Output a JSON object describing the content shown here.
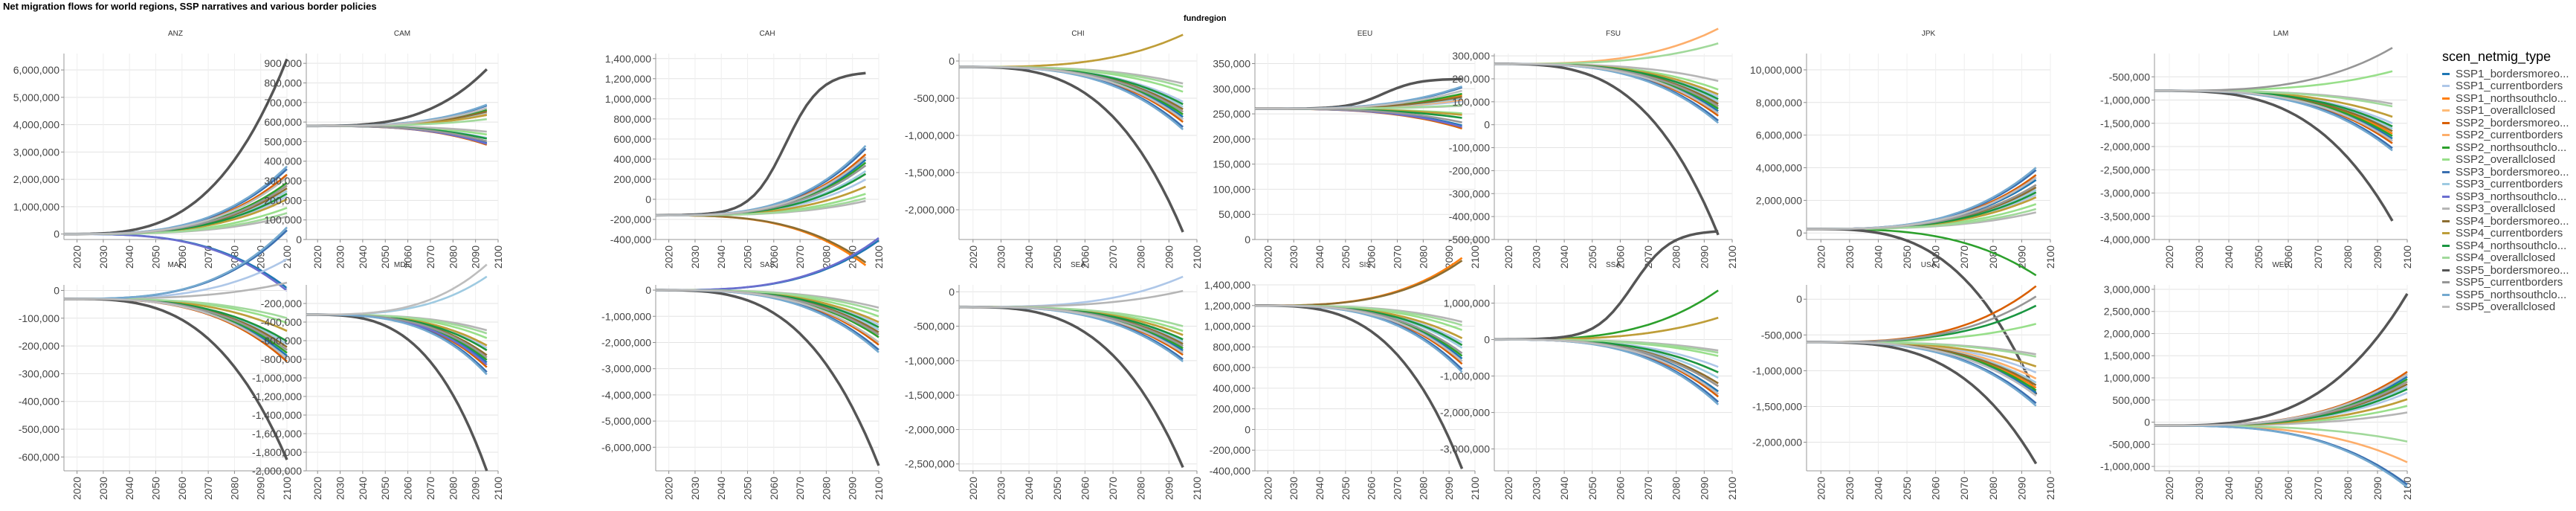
{
  "chart_title": "Net migration flows for world regions, SSP narratives and various border policies",
  "facet_header": "fundregion",
  "legend_title": "scen_netmig_type",
  "chart_data": {
    "type": "line",
    "x": [
      2010,
      2020,
      2030,
      2040,
      2050,
      2060,
      2070,
      2080,
      2090,
      2100
    ],
    "x_tick_labels": [
      "2020",
      "2030",
      "2040",
      "2050",
      "2060",
      "2070",
      "2080",
      "2090",
      "2100"
    ],
    "xlim": [
      2015,
      2100
    ],
    "grid": true,
    "legend_position": "right",
    "scenarios": [
      {
        "name": "SSP1_bordersmoreo...",
        "color": "#1f77b4",
        "weight": 0.55
      },
      {
        "name": "SSP1_currentborders",
        "color": "#aec7e8",
        "weight": 0.25
      },
      {
        "name": "SSP1_northsouthclo...",
        "color": "#ff7f0e",
        "weight": 0.45
      },
      {
        "name": "SSP1_overallclosed",
        "color": "#ffbb78",
        "weight": 0.2
      },
      {
        "name": "SSP2_bordersmoreo...",
        "color": "#d95f02",
        "weight": 0.65
      },
      {
        "name": "SSP2_currentborders",
        "color": "#fdae6b",
        "weight": 0.3
      },
      {
        "name": "SSP2_northsouthclo...",
        "color": "#2ca02c",
        "weight": 0.5
      },
      {
        "name": "SSP2_overallclosed",
        "color": "#98df8a",
        "weight": 0.15
      },
      {
        "name": "SSP3_bordersmoreo...",
        "color": "#3a6fb0",
        "weight": 0.75
      },
      {
        "name": "SSP3_currentborders",
        "color": "#9ecae1",
        "weight": 0.35
      },
      {
        "name": "SSP3_northsouthclo...",
        "color": "#6b6ecf",
        "weight": 0.6
      },
      {
        "name": "SSP3_overallclosed",
        "color": "#b5b5b5",
        "weight": 0.1
      },
      {
        "name": "SSP4_bordersmoreo...",
        "color": "#8c6d31",
        "weight": 0.4
      },
      {
        "name": "SSP4_currentborders",
        "color": "#bd9e39",
        "weight": 0.2
      },
      {
        "name": "SSP4_northsouthclo...",
        "color": "#1a9641",
        "weight": 0.3
      },
      {
        "name": "SSP4_overallclosed",
        "color": "#a1d99b",
        "weight": 0.12
      },
      {
        "name": "SSP5_bordersmoreo...",
        "color": "#555555",
        "weight": 1.0
      },
      {
        "name": "SSP5_currentborders",
        "color": "#969696",
        "weight": 0.45
      },
      {
        "name": "SSP5_northsouthclo...",
        "color": "#74a9cf",
        "weight": 0.8
      },
      {
        "name": "SSP5_overallclosed",
        "color": "#bdbdbd",
        "weight": 0.6
      }
    ],
    "panels": [
      {
        "region": "ANZ",
        "ylim": [
          -200000,
          6600000
        ],
        "yticks": [
          0,
          1000000,
          2000000,
          3000000,
          4000000,
          5000000,
          6000000
        ],
        "y_tick_labels": [
          "0",
          "1,000,000",
          "2,000,000",
          "3,000,000",
          "4,000,000",
          "5,000,000",
          "6,000,000"
        ],
        "base": 0,
        "extreme": 6400000,
        "spread": 2500000,
        "down_frac": 0.02,
        "x_end": 2100
      },
      {
        "region": "CAM",
        "ylim": [
          0,
          950000
        ],
        "yticks": [
          0,
          100000,
          200000,
          300000,
          400000,
          500000,
          600000,
          700000,
          800000,
          900000
        ],
        "y_tick_labels": [
          "0",
          "100,000",
          "200,000",
          "300,000",
          "400,000",
          "500,000",
          "600,000",
          "700,000",
          "800,000",
          "900,000"
        ],
        "base": 580000,
        "extreme": 870000,
        "spread": 110000,
        "down_frac": 0.35,
        "x_end": 2095
      },
      {
        "region": "CAH",
        "ylim": [
          -400000,
          1450000
        ],
        "yticks": [
          -400000,
          -200000,
          0,
          200000,
          400000,
          600000,
          800000,
          1000000,
          1200000,
          1400000
        ],
        "y_tick_labels": [
          "-400,000",
          "-200,000",
          "0",
          "200,000",
          "400,000",
          "600,000",
          "800,000",
          "1,000,000",
          "1,200,000",
          "1,400,000"
        ],
        "base": -160000,
        "extreme": 1270000,
        "spread": 700000,
        "down_frac": 0.05,
        "x_end": 2095,
        "plateau": true
      },
      {
        "region": "CHI",
        "ylim": [
          -2400000,
          100000
        ],
        "yticks": [
          0,
          -500000,
          -1000000,
          -1500000,
          -2000000
        ],
        "y_tick_labels": [
          "0",
          "-500,000",
          "-1,000,000",
          "-1,500,000",
          "-2,000,000"
        ],
        "base": -80000,
        "extreme": -2300000,
        "spread": -850000,
        "down_frac": 0.1,
        "x_end": 2095
      },
      {
        "region": "EEU",
        "ylim": [
          0,
          370000
        ],
        "yticks": [
          0,
          50000,
          100000,
          150000,
          200000,
          250000,
          300000,
          350000
        ],
        "y_tick_labels": [
          "0",
          "50,000",
          "100,000",
          "150,000",
          "200,000",
          "250,000",
          "300,000",
          "350,000"
        ],
        "base": 260000,
        "extreme": 320000,
        "spread": 45000,
        "down_frac": 0.35,
        "x_end": 2095,
        "plateau": true
      },
      {
        "region": "FSU",
        "ylim": [
          -500000,
          310000
        ],
        "yticks": [
          -500000,
          -400000,
          -300000,
          -200000,
          -100000,
          0,
          100000,
          200000,
          300000
        ],
        "y_tick_labels": [
          "-500,000",
          "-400,000",
          "-300,000",
          "-200,000",
          "-100,000",
          "0",
          "100,000",
          "200,000",
          "300,000"
        ],
        "base": 265000,
        "extreme": -480000,
        "spread": -260000,
        "down_frac": 0.08,
        "x_end": 2095
      },
      {
        "region": "JPK",
        "ylim": [
          -400000,
          11000000
        ],
        "yticks": [
          0,
          2000000,
          4000000,
          6000000,
          8000000,
          10000000
        ],
        "y_tick_labels": [
          "0",
          "2,000,000",
          "4,000,000",
          "6,000,000",
          "8,000,000",
          "10,000,000"
        ],
        "base": 250000,
        "extreme": 10400000,
        "spread": 3800000,
        "down_frac": 0.02,
        "x_end": 2095
      },
      {
        "region": "LAM",
        "ylim": [
          -4000000,
          0
        ],
        "yticks": [
          -500000,
          -1000000,
          -1500000,
          -2000000,
          -2500000,
          -3000000,
          -3500000,
          -4000000
        ],
        "y_tick_labels": [
          "-500,000",
          "-1,000,000",
          "-1,500,000",
          "-2,000,000",
          "-2,500,000",
          "-3,000,000",
          "-3,500,000",
          "-4,000,000"
        ],
        "base": -800000,
        "extreme": -3600000,
        "spread": -1300000,
        "down_frac": 0.1,
        "x_end": 2095
      },
      {
        "region": "MAF",
        "ylim": [
          -650000,
          20000
        ],
        "yticks": [
          0,
          -100000,
          -200000,
          -300000,
          -400000,
          -500000,
          -600000
        ],
        "y_tick_labels": [
          "0",
          "-100,000",
          "-200,000",
          "-300,000",
          "-400,000",
          "-500,000",
          "-600,000"
        ],
        "base": -30000,
        "extreme": -610000,
        "spread": -260000,
        "down_frac": 0.15,
        "x_end": 2100
      },
      {
        "region": "MDE",
        "ylim": [
          -2000000,
          0
        ],
        "yticks": [
          -200000,
          -400000,
          -600000,
          -800000,
          -1000000,
          -1200000,
          -1400000,
          -1600000,
          -1800000,
          -2000000
        ],
        "y_tick_labels": [
          "-200,000",
          "-400,000",
          "-600,000",
          "-800,000",
          "-1,000,000",
          "-1,200,000",
          "-1,400,000",
          "-1,600,000",
          "-1,800,000",
          "-2,000,000"
        ],
        "base": -320000,
        "extreme": -2000000,
        "spread": -650000,
        "down_frac": 0.1,
        "x_end": 2095
      },
      {
        "region": "SAS",
        "ylim": [
          -6900000,
          200000
        ],
        "yticks": [
          0,
          -1000000,
          -2000000,
          -3000000,
          -4000000,
          -5000000,
          -6000000
        ],
        "y_tick_labels": [
          "0",
          "-1,000,000",
          "-2,000,000",
          "-3,000,000",
          "-4,000,000",
          "-5,000,000",
          "-6,000,000"
        ],
        "base": 0,
        "extreme": -6700000,
        "spread": -2400000,
        "down_frac": 0.05,
        "x_end": 2100
      },
      {
        "region": "SEA",
        "ylim": [
          -2600000,
          100000
        ],
        "yticks": [
          0,
          -500000,
          -1000000,
          -1500000,
          -2000000,
          -2500000
        ],
        "y_tick_labels": [
          "0",
          "-500,000",
          "-1,000,000",
          "-1,500,000",
          "-2,000,000",
          "-2,500,000"
        ],
        "base": -220000,
        "extreme": -2550000,
        "spread": -800000,
        "down_frac": 0.1,
        "x_end": 2095
      },
      {
        "region": "SIS",
        "ylim": [
          -400000,
          1400000
        ],
        "yticks": [
          -400000,
          -200000,
          0,
          200000,
          400000,
          600000,
          800000,
          1000000,
          1200000,
          1400000
        ],
        "y_tick_labels": [
          "-400,000",
          "-200,000",
          "0",
          "200,000",
          "400,000",
          "600,000",
          "800,000",
          "1,000,000",
          "1,200,000",
          "1,400,000"
        ],
        "base": 1200000,
        "extreme": -380000,
        "spread": -650000,
        "down_frac": 0.05,
        "x_end": 2095
      },
      {
        "region": "SSA",
        "ylim": [
          -3600000,
          1500000
        ],
        "yticks": [
          -3000000,
          -2000000,
          -1000000,
          0,
          1000000
        ],
        "y_tick_labels": [
          "-3,000,000",
          "-2,000,000",
          "-1,000,000",
          "0",
          "1,000,000"
        ],
        "base": 0,
        "extreme": -3000000,
        "spread": -1800000,
        "down_frac": 0.12,
        "x_end": 2095,
        "plateau": true
      },
      {
        "region": "USA",
        "ylim": [
          -2400000,
          200000
        ],
        "yticks": [
          0,
          -500000,
          -1000000,
          -1500000,
          -2000000
        ],
        "y_tick_labels": [
          "0",
          "-500,000",
          "-1,000,000",
          "-1,500,000",
          "-2,000,000"
        ],
        "base": -600000,
        "extreme": -2300000,
        "spread": -900000,
        "down_frac": 0.2,
        "x_end": 2095
      },
      {
        "region": "WEU",
        "ylim": [
          -1100000,
          3100000
        ],
        "yticks": [
          -1000000,
          -500000,
          0,
          500000,
          1000000,
          1500000,
          2000000,
          2500000,
          3000000
        ],
        "y_tick_labels": [
          "-1,000,000",
          "-500,000",
          "0",
          "500,000",
          "1,000,000",
          "1,500,000",
          "2,000,000",
          "2,500,000",
          "3,000,000"
        ],
        "base": -80000,
        "extreme": 2900000,
        "spread": 1400000,
        "down_frac": 0.2,
        "x_end": 2100
      }
    ]
  }
}
